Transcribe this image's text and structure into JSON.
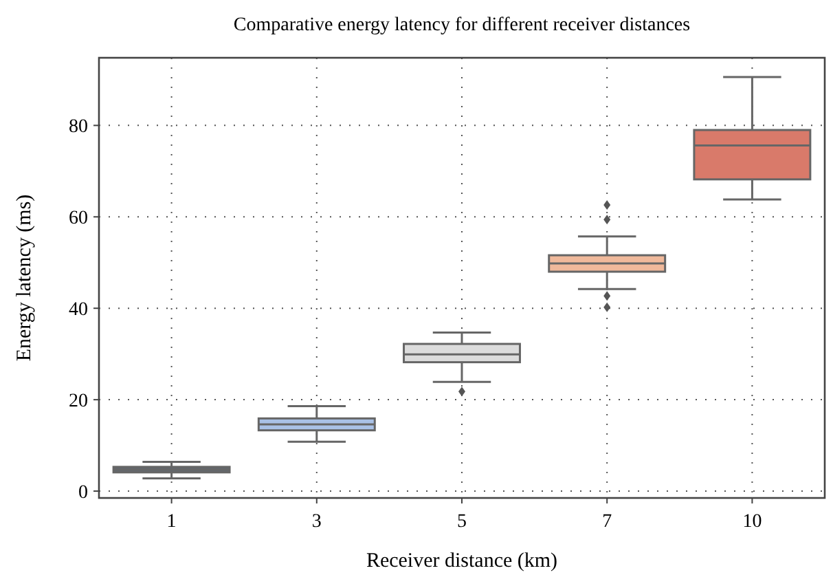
{
  "chart_data": {
    "type": "box",
    "title": "Comparative energy latency for different receiver distances",
    "xlabel": "Receiver distance (km)",
    "ylabel": "Energy latency (ms)",
    "categories": [
      "1",
      "3",
      "5",
      "7",
      "10"
    ],
    "colors": [
      "#606870",
      "#a9c1e6",
      "#dcdcdc",
      "#f0b99b",
      "#d97a6a"
    ],
    "boxes": [
      {
        "low": 2.8,
        "q1": 4.1,
        "median": 4.7,
        "q3": 5.3,
        "high": 6.4
      },
      {
        "low": 10.8,
        "q1": 13.3,
        "median": 14.6,
        "q3": 15.9,
        "high": 18.6
      },
      {
        "low": 23.9,
        "q1": 28.2,
        "median": 29.9,
        "q3": 32.2,
        "high": 34.7,
        "outliers": [
          21.8
        ]
      },
      {
        "low": 44.2,
        "q1": 48.0,
        "median": 49.8,
        "q3": 51.6,
        "high": 55.7,
        "outliers": [
          62.6,
          59.4,
          42.7,
          40.2
        ]
      },
      {
        "low": 63.8,
        "q1": 68.2,
        "median": 75.6,
        "q3": 79.0,
        "high": 90.6
      }
    ],
    "ylim": [
      -1.5,
      94.8
    ],
    "yticks": [
      0,
      20,
      40,
      60,
      80
    ],
    "grid": true
  }
}
